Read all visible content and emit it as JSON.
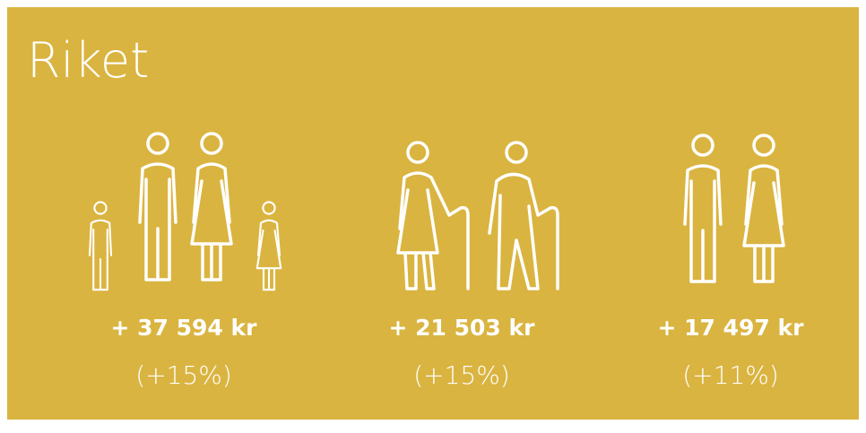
{
  "title": "Riket",
  "items": [
    {
      "amount": "+ 37 594 kr",
      "change": "(+15%)"
    },
    {
      "amount": "+ 21 503 kr",
      "change": "(+15%)"
    },
    {
      "amount": "+ 17 497 kr",
      "change": "(+11%)"
    }
  ]
}
